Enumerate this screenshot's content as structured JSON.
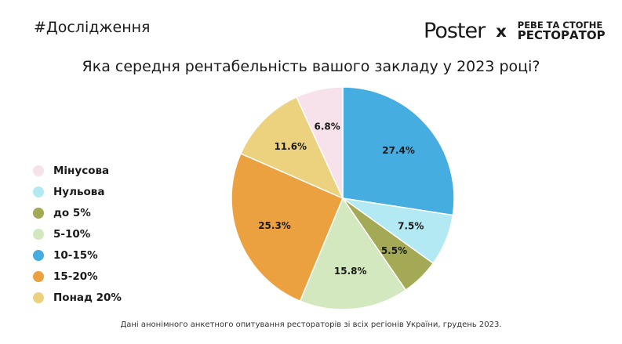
{
  "header": {
    "hashtag": "#Дослідження",
    "logo_text": "Poster",
    "logo_sep": "x",
    "partner_line1": "РЕВЕ ТА СТОГНЕ",
    "partner_line2": "РЕСТОРАТОР"
  },
  "footer": "Дані анонімного анкетного опитування рестораторів зі всіх регіонів України, грудень 2023.",
  "chart_data": {
    "type": "pie",
    "title": "Яка середня рентабельність вашого закладу у 2023 році?",
    "legend_position": "left",
    "start": "top, clockwise",
    "slices": [
      {
        "name": "10-15%",
        "value": 27.4,
        "label": "27.4%",
        "color": "#46ade0"
      },
      {
        "name": "Нульова",
        "value": 7.5,
        "label": "7.5%",
        "color": "#b3e9f3"
      },
      {
        "name": "до 5%",
        "value": 5.5,
        "label": "5.5%",
        "color": "#a3a955"
      },
      {
        "name": "5-10%",
        "value": 15.8,
        "label": "15.8%",
        "color": "#d3e8bf"
      },
      {
        "name": "15-20%",
        "value": 25.3,
        "label": "25.3%",
        "color": "#eca140"
      },
      {
        "name": "Понад 20%",
        "value": 11.6,
        "label": "11.6%",
        "color": "#ecd27e"
      },
      {
        "name": "Мінусова",
        "value": 6.8,
        "label": "6.8%",
        "color": "#f7e1ea"
      }
    ],
    "legend": [
      {
        "name": "Мінусова",
        "color": "#f7e1ea"
      },
      {
        "name": "Нульова",
        "color": "#b3e9f3"
      },
      {
        "name": "до 5%",
        "color": "#a3a955"
      },
      {
        "name": "5-10%",
        "color": "#d3e8bf"
      },
      {
        "name": "10-15%",
        "color": "#46ade0"
      },
      {
        "name": "15-20%",
        "color": "#eca140"
      },
      {
        "name": "Понад 20%",
        "color": "#ecd27e"
      }
    ]
  }
}
